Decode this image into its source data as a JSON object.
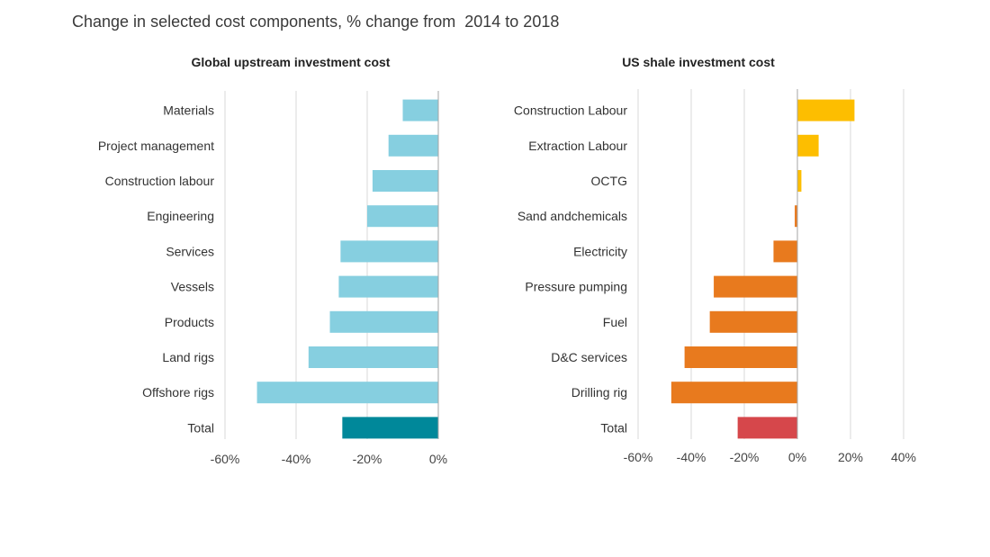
{
  "title": "Change in selected cost components, % change from  2014 to 2018",
  "chart_data": [
    {
      "type": "bar",
      "orientation": "horizontal",
      "title": "Global upstream investment cost",
      "categories": [
        "Materials",
        "Project management",
        "Construction labour",
        "Engineering",
        "Services",
        "Vessels",
        "Products",
        "Land rigs",
        "Offshore rigs",
        "Total"
      ],
      "values": [
        -10,
        -14,
        -18.5,
        -20,
        -27.5,
        -28,
        -30.5,
        -36.5,
        -51,
        -27
      ],
      "colors": [
        "#86cfe0",
        "#86cfe0",
        "#86cfe0",
        "#86cfe0",
        "#86cfe0",
        "#86cfe0",
        "#86cfe0",
        "#86cfe0",
        "#86cfe0",
        "#00889a"
      ],
      "xlim": [
        -60,
        0
      ],
      "xticks": [
        -60,
        -40,
        -20,
        0
      ],
      "xtick_labels": [
        "-60%",
        "-40%",
        "-20%",
        "0%"
      ],
      "grid": true
    },
    {
      "type": "bar",
      "orientation": "horizontal",
      "title": "US shale investment cost",
      "categories": [
        "Construction Labour",
        "Extraction Labour",
        "OCTG",
        "Sand andchemicals",
        "Electricity",
        "Pressure pumping",
        "Fuel",
        "D&C services",
        "Drilling rig",
        "Total"
      ],
      "values": [
        21.5,
        8,
        1.5,
        -1,
        -9,
        -31.5,
        -33,
        -42.5,
        -47.5,
        -22.5
      ],
      "colors": [
        "#fdbe00",
        "#fdbe00",
        "#fdbe00",
        "#e87a1e",
        "#e87a1e",
        "#e87a1e",
        "#e87a1e",
        "#e87a1e",
        "#e87a1e",
        "#d6474b"
      ],
      "xlim": [
        -60,
        40
      ],
      "xticks": [
        -60,
        -40,
        -20,
        0,
        20,
        40
      ],
      "xtick_labels": [
        "-60%",
        "-40%",
        "-20%",
        "0%",
        "20%",
        "40%"
      ],
      "grid": true
    }
  ]
}
